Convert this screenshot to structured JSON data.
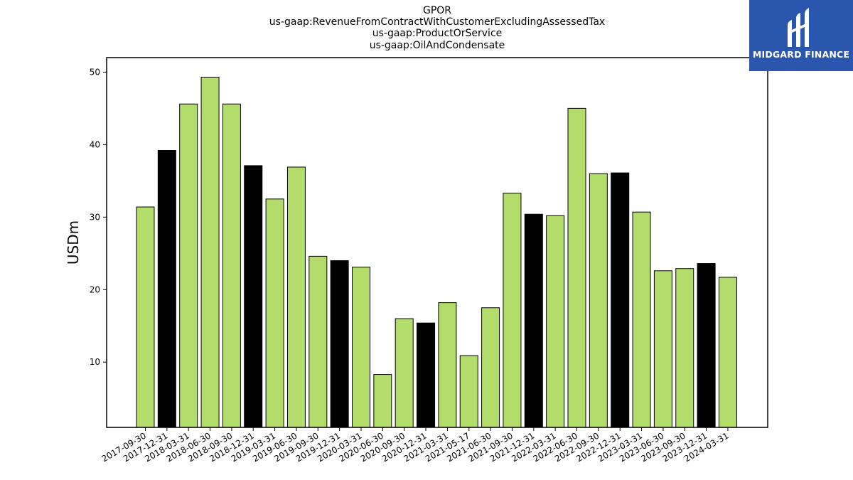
{
  "title_lines": [
    "GPOR",
    "us-gaap:RevenueFromContractWithCustomerExcludingAssessedTax",
    "us-gaap:ProductOrService",
    "us-gaap:OilAndCondensate"
  ],
  "logo": {
    "text": "MIDGARD FINANCE",
    "icon": "midgard-logo-mark",
    "color": "#2a57ad"
  },
  "chart_data": {
    "type": "bar",
    "title": "GPOR us-gaap:RevenueFromContractWithCustomerExcludingAssessedTax us-gaap:ProductOrService us-gaap:OilAndCondensate",
    "xlabel": "",
    "ylabel": "USDm",
    "ylim": [
      1,
      52
    ],
    "yticks": [
      10,
      20,
      30,
      40,
      50
    ],
    "grid": false,
    "colors": {
      "quarter": "#b2dd6a",
      "year_end": "#000000",
      "edge": "#000000"
    },
    "categories": [
      "2017-09-30",
      "2017-12-31",
      "2018-03-31",
      "2018-06-30",
      "2018-09-30",
      "2018-12-31",
      "2019-03-31",
      "2019-06-30",
      "2019-09-30",
      "2019-12-31",
      "2020-03-31",
      "2020-06-30",
      "2020-09-30",
      "2020-12-31",
      "2021-03-31",
      "2021-05-17",
      "2021-06-30",
      "2021-09-30",
      "2021-12-31",
      "2022-03-31",
      "2022-06-30",
      "2022-09-30",
      "2022-12-31",
      "2023-03-31",
      "2023-06-30",
      "2023-09-30",
      "2023-12-31",
      "2024-03-31"
    ],
    "values": [
      31.4,
      39.2,
      45.6,
      49.3,
      45.6,
      37.1,
      32.5,
      36.9,
      24.6,
      24.0,
      23.1,
      8.3,
      16.0,
      15.4,
      18.2,
      10.9,
      17.5,
      33.3,
      30.4,
      30.2,
      45.0,
      36.0,
      36.1,
      30.7,
      22.6,
      22.9,
      23.6,
      21.7
    ],
    "highlight": [
      false,
      true,
      false,
      false,
      false,
      true,
      false,
      false,
      false,
      true,
      false,
      false,
      false,
      true,
      false,
      false,
      false,
      false,
      true,
      false,
      false,
      false,
      true,
      false,
      false,
      false,
      true,
      false
    ]
  }
}
